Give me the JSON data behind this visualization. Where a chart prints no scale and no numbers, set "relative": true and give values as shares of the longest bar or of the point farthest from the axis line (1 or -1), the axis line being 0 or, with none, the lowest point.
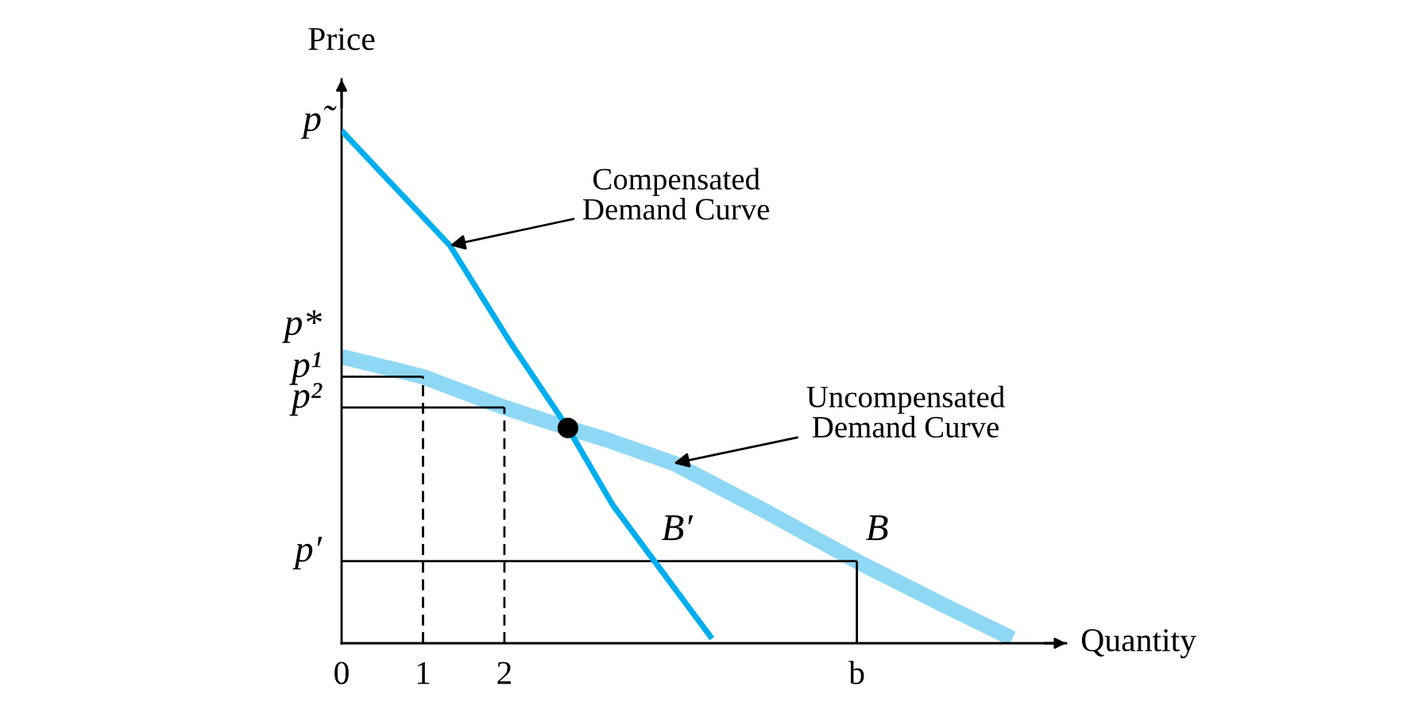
{
  "chart_data": {
    "type": "line",
    "relative": true,
    "xlabel": "Quantity",
    "ylabel": "Price",
    "xlim": [
      0,
      8.9
    ],
    "xticks": [
      0,
      1,
      2,
      {
        "value": 6.33,
        "label": "b"
      }
    ],
    "grid": false,
    "legend": false,
    "marker": "none",
    "series": [
      {
        "color": "#00aeef",
        "x": [
          0,
          1.33,
          2.06,
          2.78,
          3.33,
          3.82,
          4.55
        ],
        "values": [
          1.0,
          0.776,
          0.59,
          0.42,
          0.27,
          0.165,
          0.009
        ]
      },
      {
        "color": "#8fd8f5",
        "x": [
          0,
          1,
          2,
          2.78,
          3.24,
          4.08,
          5.2,
          6.33,
          7.35,
          8.24
        ],
        "values": [
          0.559,
          0.52,
          0.46,
          0.42,
          0.398,
          0.351,
          0.258,
          0.16,
          0.078,
          0.009
        ]
      },
      {
        "color": "#000000",
        "x": [
          0,
          1
        ],
        "values": [
          0.52,
          0.52
        ]
      },
      {
        "color": "#000000",
        "x": [
          1,
          1
        ],
        "values": [
          0,
          0.52
        ],
        "line_style": "dashed"
      },
      {
        "color": "#000000",
        "x": [
          0,
          2
        ],
        "values": [
          0.46,
          0.46
        ]
      },
      {
        "color": "#000000",
        "x": [
          2,
          2
        ],
        "values": [
          0,
          0.46
        ],
        "line_style": "dashed"
      },
      {
        "color": "#000000",
        "x": [
          0,
          6.33
        ],
        "values": [
          0.16,
          0.16
        ]
      },
      {
        "color": "#000000",
        "x": [
          6.33,
          6.33
        ],
        "values": [
          0,
          0.16
        ]
      },
      {
        "type": "scatter",
        "color": "#000000",
        "marker": "circle",
        "x": [
          2.78
        ],
        "values": [
          0.42
        ]
      }
    ],
    "annotations": [
      {
        "text": "p̃",
        "x": 0,
        "y": 1.0
      },
      {
        "text": "p*",
        "x": 0,
        "y": 0.559
      },
      {
        "text": "p¹",
        "x": 0,
        "y": 0.52
      },
      {
        "text": "p²",
        "x": 0,
        "y": 0.46
      },
      {
        "text": "p′",
        "x": 0,
        "y": 0.16
      },
      {
        "text": "Compensated\nDemand Curve",
        "x": 1.33,
        "y": 0.776
      },
      {
        "text": "Uncompensated\nDemand Curve",
        "x": 4.08,
        "y": 0.351
      },
      {
        "text": "B′",
        "x": 3.82,
        "y": 0.16
      },
      {
        "text": "B",
        "x": 6.33,
        "y": 0.16
      }
    ]
  }
}
